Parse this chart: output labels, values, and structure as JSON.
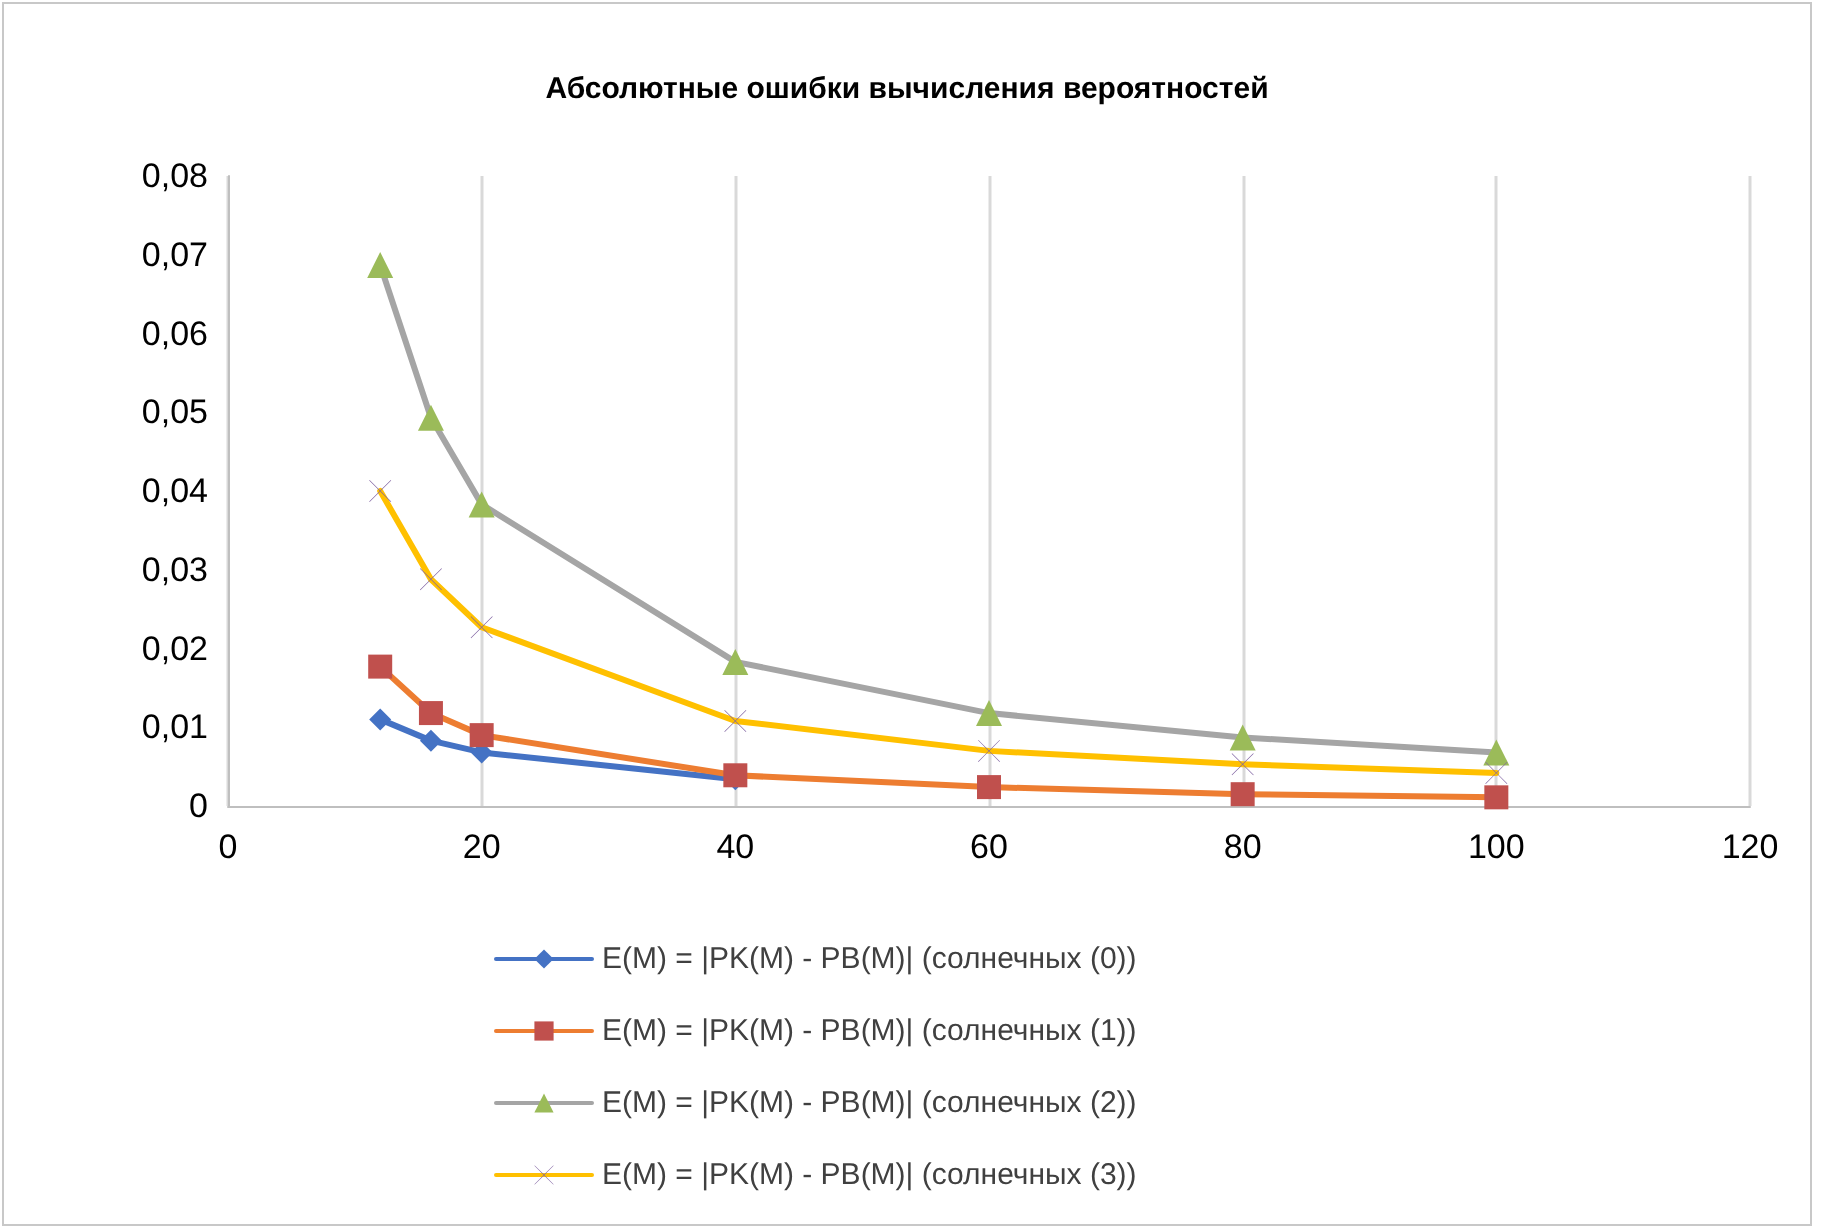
{
  "chart_data": {
    "type": "line",
    "title": "Абсолютные ошибки вычисления вероятностей",
    "x": [
      12,
      16,
      20,
      40,
      60,
      80,
      100
    ],
    "xlim": [
      0,
      120
    ],
    "xticks": [
      0,
      20,
      40,
      60,
      80,
      100,
      120
    ],
    "ylim": [
      0,
      0.08
    ],
    "yticks": [
      {
        "value": 0,
        "label": "0"
      },
      {
        "value": 0.01,
        "label": "0,01"
      },
      {
        "value": 0.02,
        "label": "0,02"
      },
      {
        "value": 0.03,
        "label": "0,03"
      },
      {
        "value": 0.04,
        "label": "0,04"
      },
      {
        "value": 0.05,
        "label": "0,05"
      },
      {
        "value": 0.06,
        "label": "0,06"
      },
      {
        "value": 0.07,
        "label": "0,07"
      },
      {
        "value": 0.08,
        "label": "0,08"
      }
    ],
    "grid": "x",
    "legend": "bottom",
    "series": [
      {
        "name": "E(M) = |PK(M) - PB(M)| (солнечных (0))",
        "color": "#4472c4",
        "marker": "diamond",
        "colors": [
          "#4472c4",
          "#4472c4",
          "#4472c4",
          "#4472c4",
          "#4472c4",
          "#4472c4",
          "#4472c4"
        ],
        "values": [
          0.011,
          0.0083,
          0.0068,
          0.0034,
          null,
          null,
          null
        ]
      },
      {
        "name": "E(M) = |PK(M) - PB(M)| (солнечных (1))",
        "color": "#ed7d31",
        "marker": "square",
        "colors": [
          "#c0504d",
          "#c0504d",
          "#c0504d",
          "#c0504d",
          "#c0504d",
          "#c0504d",
          "#c0504d"
        ],
        "values": [
          0.0177,
          0.0118,
          0.009,
          0.0039,
          0.0024,
          0.0015,
          0.0011
        ]
      },
      {
        "name": "E(M) = |PK(M) - PB(M)| (солнечных (2))",
        "color": "#a5a5a5",
        "marker": "triangle",
        "colors": [
          "#9bbb59",
          "#9bbb59",
          "#9bbb59",
          "#9bbb59",
          "#9bbb59",
          "#9bbb59",
          "#9bbb59"
        ],
        "values": [
          0.0687,
          0.0493,
          0.0383,
          0.0183,
          0.0118,
          0.0087,
          0.0068
        ]
      },
      {
        "name": "E(M) = |PK(M) - PB(M)| (солнечных (3))",
        "color": "#ffc000",
        "marker": "cross",
        "colors": [
          "#8064a2",
          "#8064a2",
          "#8064a2",
          "#8064a2",
          "#8064a2",
          "#8064a2",
          "#8064a2"
        ],
        "values": [
          0.04,
          0.0288,
          0.0227,
          0.0108,
          0.007,
          0.0053,
          0.0042
        ]
      }
    ]
  }
}
